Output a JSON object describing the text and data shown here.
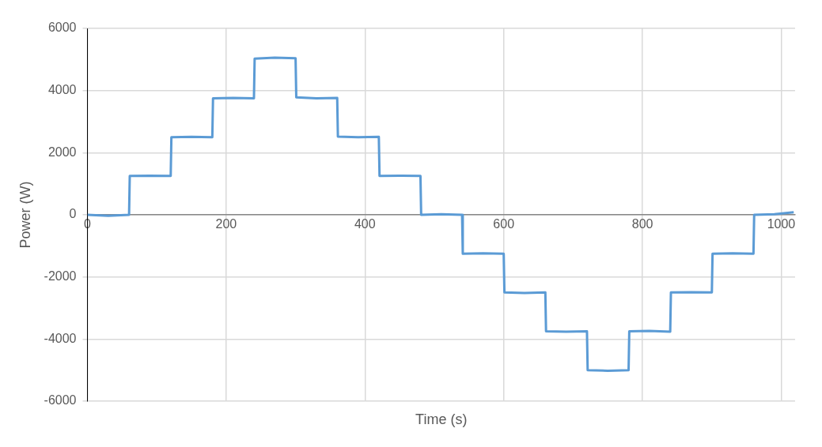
{
  "chart_data": {
    "type": "line",
    "xlabel": "Time (s)",
    "ylabel": "Power (W)",
    "x": [
      0,
      30,
      60,
      61,
      90,
      120,
      121,
      150,
      180,
      181,
      210,
      240,
      241,
      270,
      300,
      301,
      330,
      360,
      361,
      390,
      420,
      421,
      450,
      480,
      481,
      510,
      540,
      541,
      570,
      600,
      601,
      630,
      660,
      661,
      690,
      720,
      721,
      750,
      780,
      781,
      810,
      840,
      841,
      870,
      900,
      901,
      930,
      960,
      961,
      990,
      1018
    ],
    "series": [
      {
        "color": "#5b9bd5",
        "values": [
          0,
          -30,
          0,
          1250,
          1260,
          1250,
          2500,
          2510,
          2500,
          3750,
          3760,
          3750,
          5030,
          5060,
          5040,
          3780,
          3750,
          3760,
          2520,
          2500,
          2510,
          1250,
          1260,
          1250,
          0,
          20,
          0,
          -1250,
          -1240,
          -1250,
          -2500,
          -2520,
          -2500,
          -3750,
          -3760,
          -3750,
          -5000,
          -5020,
          -5000,
          -3750,
          -3740,
          -3760,
          -2500,
          -2490,
          -2500,
          -1250,
          -1240,
          -1250,
          0,
          20,
          80
        ]
      }
    ],
    "xlim": [
      0,
      1020
    ],
    "xticks": [
      0,
      200,
      400,
      600,
      800,
      1000
    ],
    "ylim": [
      -6000,
      6000
    ],
    "yticks": [
      -6000,
      -4000,
      -2000,
      0,
      2000,
      4000,
      6000
    ],
    "grid": true,
    "marker": "none",
    "line_style": "solid",
    "legend": false
  }
}
